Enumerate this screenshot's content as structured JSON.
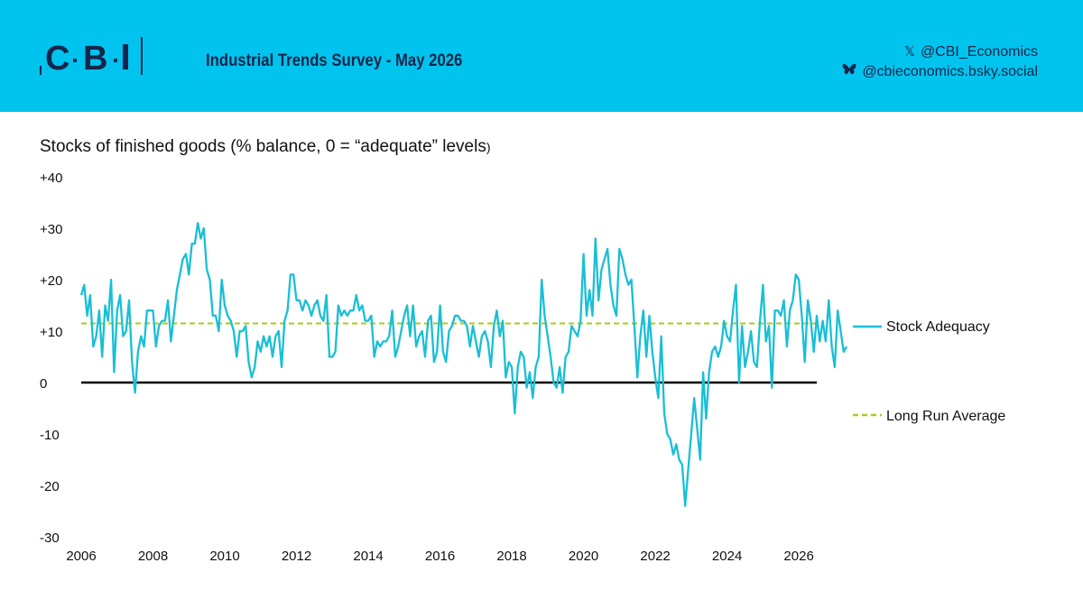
{
  "header": {
    "logo_text": "CBI",
    "survey_title": "Industrial Trends Survey - May 2026",
    "social": [
      {
        "icon": "x-icon",
        "handle": "@CBI_Economics"
      },
      {
        "icon": "bluesky-butterfly-icon",
        "handle": "@cbieconomics.bsky.social"
      }
    ]
  },
  "chart_title_main": "Stocks of finished goods (% balance, 0 = “adequate” levels",
  "chart_title_tail": ")",
  "colors": {
    "header_bg": "#00c3ee",
    "navy": "#16264a",
    "series": "#19bfd6",
    "average": "#a7cc1a",
    "zero_line": "#000000"
  },
  "chart_data": {
    "type": "line",
    "title": "Stocks of finished goods (% balance, 0 = “adequate” levels)",
    "xlim": [
      2006,
      2026.9
    ],
    "ylim": [
      -30,
      40
    ],
    "y_ticks": [
      40,
      30,
      20,
      10,
      0,
      -10,
      -20,
      -30
    ],
    "y_tick_labels": [
      "+40",
      "+30",
      "+20",
      "+10",
      "0",
      "-10",
      "-20",
      "-30"
    ],
    "x_ticks": [
      2006,
      2008,
      2010,
      2012,
      2014,
      2016,
      2018,
      2020,
      2022,
      2024,
      2026
    ],
    "x_tick_labels": [
      "2006",
      "2008",
      "2010",
      "2012",
      "2014",
      "2016",
      "2018",
      "2020",
      "2022",
      "2024",
      "2026"
    ],
    "grid": false,
    "legend_position": "right",
    "series": [
      {
        "name": "Stock Adequacy",
        "style": "solid",
        "color": "#19bfd6",
        "x_start": 2006.0,
        "x_step": 0.0833333,
        "values": [
          17,
          19,
          13,
          17,
          7,
          9,
          14,
          5,
          15,
          12,
          20,
          2,
          14,
          17,
          9,
          10,
          16,
          4,
          -2,
          6,
          9,
          7,
          14,
          14,
          14,
          7,
          11,
          12,
          12,
          16,
          8,
          13,
          18,
          21,
          24,
          25,
          21,
          27,
          27,
          31,
          28,
          30,
          22,
          20,
          13,
          13,
          10,
          20,
          15,
          13,
          12,
          10,
          5,
          10,
          10,
          11,
          4,
          1,
          3,
          8,
          6,
          9,
          7,
          9,
          5,
          9,
          10,
          3,
          12,
          14,
          21,
          21,
          16,
          16,
          14,
          16,
          15,
          13,
          15,
          16,
          13,
          12,
          17,
          5,
          5,
          6,
          15,
          13,
          14,
          13,
          14,
          14,
          17,
          14,
          15,
          12,
          12,
          13,
          5,
          8,
          7,
          8,
          8,
          9,
          14,
          5,
          7,
          10,
          13,
          15,
          9,
          15,
          7,
          9,
          10,
          5,
          12,
          13,
          4,
          6,
          15,
          6,
          4,
          10,
          11,
          13,
          13,
          12,
          12,
          11,
          7,
          11,
          8,
          5,
          9,
          10,
          8,
          3,
          11,
          14,
          9,
          12,
          1,
          4,
          3,
          -6,
          3,
          6,
          5,
          -1,
          2,
          -3,
          3,
          5,
          20,
          13,
          9,
          5,
          0,
          -1,
          3,
          -2,
          5,
          6,
          11,
          10,
          9,
          12,
          25,
          13,
          18,
          13,
          28,
          16,
          22,
          24,
          26,
          19,
          15,
          13,
          26,
          24,
          21,
          19,
          20,
          11,
          1,
          9,
          14,
          5,
          13,
          6,
          1,
          -3,
          9,
          -6,
          -10,
          -11,
          -14,
          -12,
          -15,
          -16,
          -24,
          -17,
          -10,
          -3,
          -9,
          -15,
          2,
          -7,
          2,
          6,
          7,
          5,
          7,
          12,
          9,
          8,
          14,
          19,
          0,
          11,
          3,
          6,
          10,
          4,
          3,
          12,
          19,
          8,
          11,
          -1,
          14,
          14,
          13,
          16,
          7,
          14,
          16,
          21,
          20,
          13,
          4,
          16,
          12,
          6,
          13,
          8,
          12,
          8,
          16,
          7,
          3,
          14,
          10,
          6,
          7
        ]
      },
      {
        "name": "Long Run Average",
        "style": "dashed",
        "color": "#a7cc1a",
        "constant": 11.5
      }
    ]
  }
}
